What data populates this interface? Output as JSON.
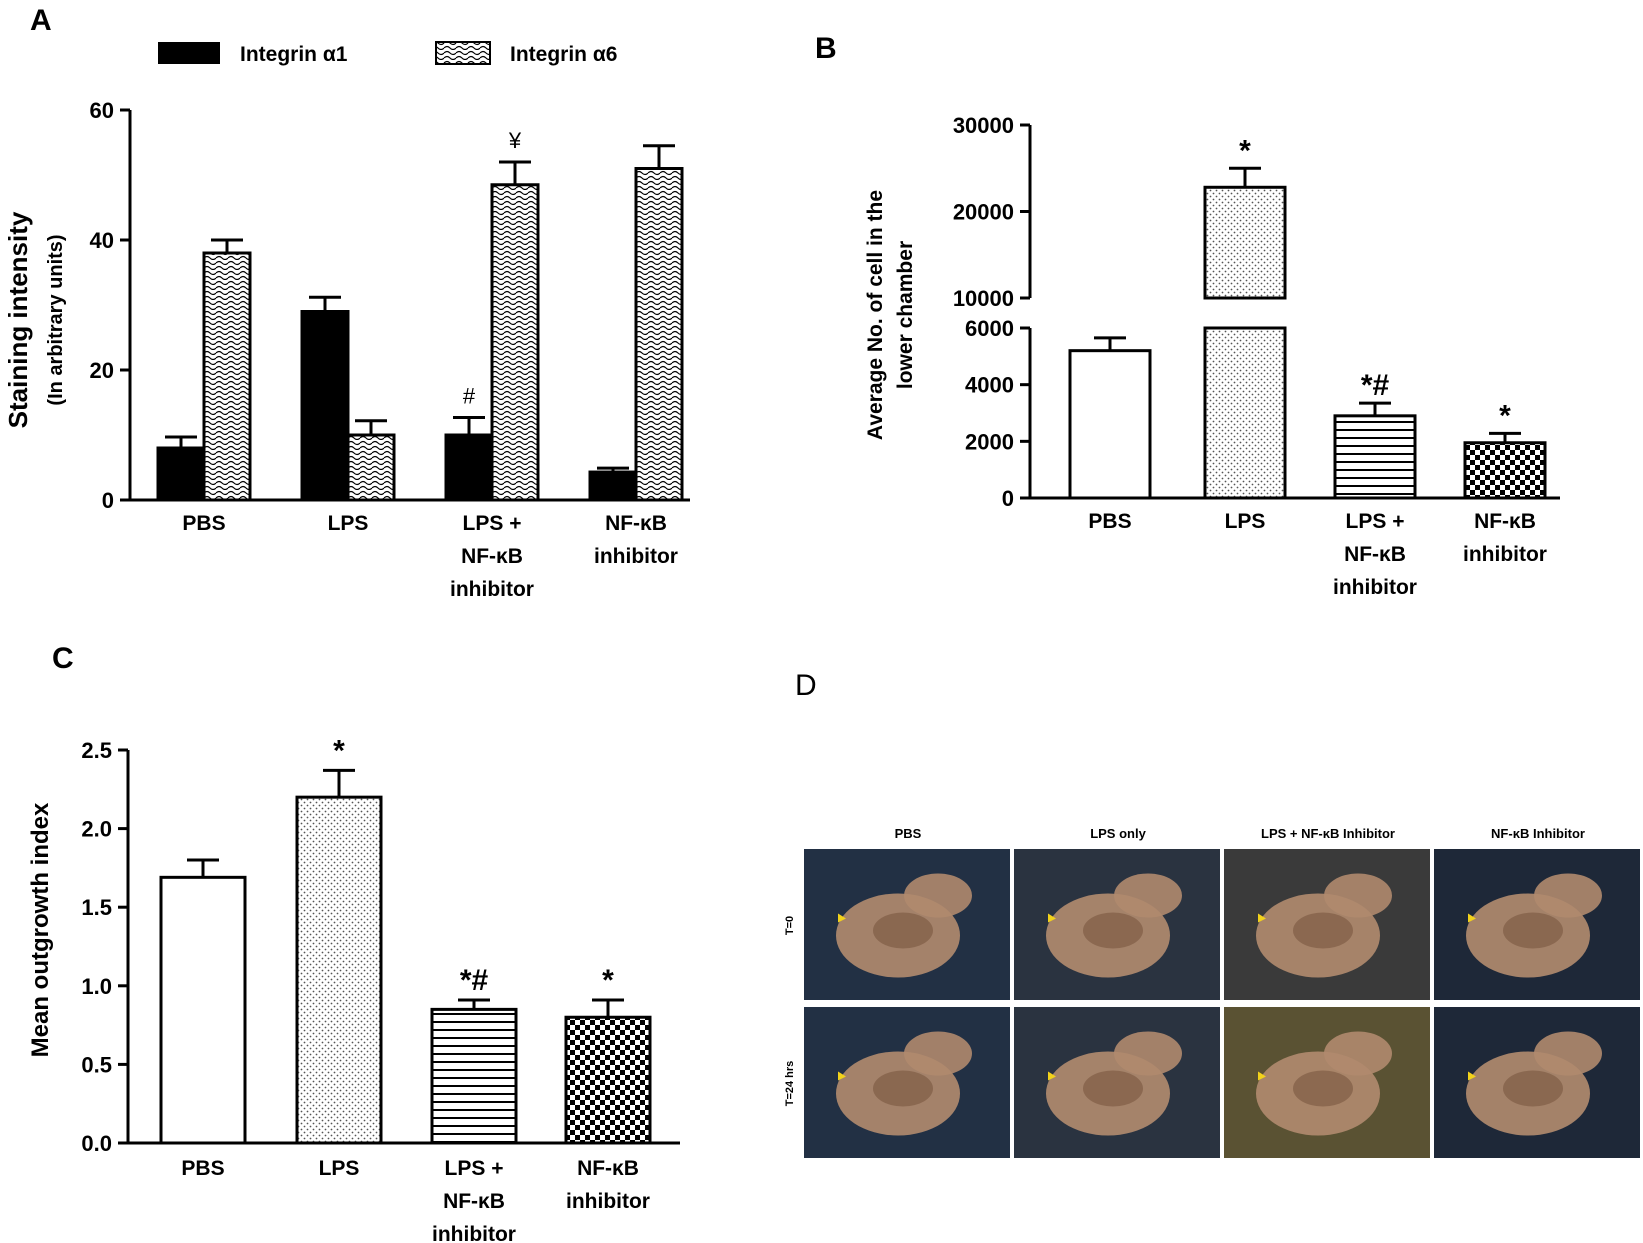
{
  "chart_data": [
    {
      "panel": "A",
      "type": "bar",
      "ylabel": "Staining intensity",
      "ylabel_sub": "(In arbitrary units)",
      "ylim": [
        0,
        60
      ],
      "yticks": [
        0,
        20,
        40,
        60
      ],
      "categories": [
        "PBS",
        "LPS",
        "LPS + NF-κB inhibitor",
        "NF-κB inhibitor"
      ],
      "category_lines": [
        [
          "PBS"
        ],
        [
          "LPS"
        ],
        [
          "LPS +",
          "NF-κB",
          "inhibitor"
        ],
        [
          "NF-κB",
          "inhibitor"
        ]
      ],
      "series": [
        {
          "name": "Integrin α1",
          "pattern": "solid",
          "values": [
            8,
            29,
            10,
            4.3
          ],
          "errors": [
            1.7,
            2.2,
            2.7,
            0.6
          ],
          "annotations": [
            "",
            "",
            "#",
            ""
          ]
        },
        {
          "name": "Integrin α6",
          "pattern": "weave",
          "values": [
            38,
            10,
            48.5,
            51
          ],
          "errors": [
            2,
            2.2,
            3.5,
            3.5
          ],
          "annotations": [
            "",
            "",
            "¥",
            ""
          ]
        }
      ]
    },
    {
      "panel": "B",
      "type": "bar",
      "ylabel_lines": [
        "Average No. of cell in the",
        "lower chamber"
      ],
      "broken_axis": true,
      "lower_ylim": [
        0,
        6000
      ],
      "lower_yticks": [
        0,
        2000,
        4000,
        6000
      ],
      "upper_ylim": [
        10000,
        30000
      ],
      "upper_yticks": [
        10000,
        20000,
        30000
      ],
      "categories": [
        "PBS",
        "LPS",
        "LPS + NF-κB inhibitor",
        "NF-κB inhibitor"
      ],
      "category_lines": [
        [
          "PBS"
        ],
        [
          "LPS"
        ],
        [
          "LPS +",
          "NF-κB",
          "inhibitor"
        ],
        [
          "NF-κB",
          "inhibitor"
        ]
      ],
      "values": [
        5200,
        22800,
        2900,
        1950
      ],
      "errors": [
        450,
        2200,
        450,
        330
      ],
      "patterns": [
        "white",
        "dots",
        "hlines",
        "checker"
      ],
      "annotations": [
        "",
        "*",
        "*#",
        "*"
      ]
    },
    {
      "panel": "C",
      "type": "bar",
      "ylabel": "Mean outgrowth index",
      "ylim": [
        0,
        2.5
      ],
      "yticks": [
        "0.0",
        "0.5",
        "1.0",
        "1.5",
        "2.0",
        "2.5"
      ],
      "categories": [
        "PBS",
        "LPS",
        "LPS + NF-κB inhibitor",
        "NF-κB inhibitor"
      ],
      "category_lines": [
        [
          "PBS"
        ],
        [
          "LPS"
        ],
        [
          "LPS +",
          "NF-κB",
          "inhibitor"
        ],
        [
          "NF-κB",
          "inhibitor"
        ]
      ],
      "values": [
        1.69,
        2.2,
        0.85,
        0.8
      ],
      "errors": [
        0.11,
        0.17,
        0.06,
        0.11
      ],
      "patterns": [
        "white",
        "dots",
        "hlines",
        "checker"
      ],
      "annotations": [
        "",
        "*",
        "*#",
        "*"
      ]
    }
  ],
  "panel_labels": {
    "a": "A",
    "b": "B",
    "c": "C",
    "d": "D"
  },
  "panel_d": {
    "columns": [
      "PBS",
      "LPS only",
      "LPS + NF-κB Inhibitor",
      "NF-κB Inhibitor"
    ],
    "rows": [
      "T=0",
      "T=24 hrs"
    ]
  },
  "colors": {
    "bar_fill": "#000000",
    "pattern_fill": "#ffffff",
    "photo_bg": "#1f2b3b",
    "tissue": "#b08a6e",
    "arrow": "#f2d21b"
  }
}
